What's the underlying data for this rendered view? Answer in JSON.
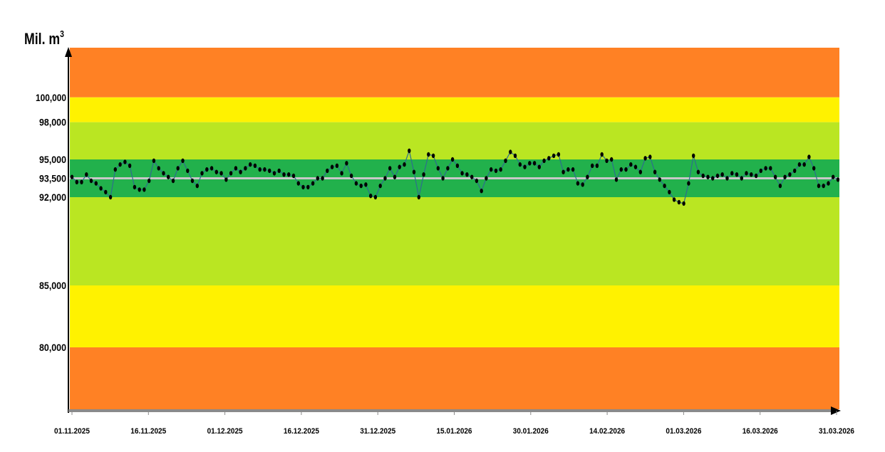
{
  "chart_data": {
    "type": "line",
    "ylabel": "Mil. m",
    "ylabel_sup": "3",
    "ylim": [
      75000,
      104000
    ],
    "y_ticks": [
      {
        "value": 100000,
        "label": "100,000"
      },
      {
        "value": 98000,
        "label": "98,000"
      },
      {
        "value": 95000,
        "label": "95,000"
      },
      {
        "value": 93500,
        "label": "93,500"
      },
      {
        "value": 92000,
        "label": "92,000"
      },
      {
        "value": 85000,
        "label": "85,000"
      },
      {
        "value": 80000,
        "label": "80,000"
      }
    ],
    "x_ticks": [
      "01.11.2025",
      "16.11.2025",
      "01.12.2025",
      "16.12.2025",
      "31.12.2025",
      "15.01.2026",
      "30.01.2026",
      "14.02.2026",
      "01.03.2026",
      "16.03.2026",
      "31.03.2026"
    ],
    "x_start": "01.11.2025",
    "x_end": "31.03.2026",
    "bands": [
      {
        "from": 100000,
        "to": 104000,
        "color": "#FF8124"
      },
      {
        "from": 98000,
        "to": 100000,
        "color": "#FFF200"
      },
      {
        "from": 95000,
        "to": 98000,
        "color": "#BAE622"
      },
      {
        "from": 92000,
        "to": 95000,
        "color": "#22B14C"
      },
      {
        "from": 85000,
        "to": 92000,
        "color": "#BAE622"
      },
      {
        "from": 80000,
        "to": 85000,
        "color": "#FFF200"
      },
      {
        "from": 75000,
        "to": 80000,
        "color": "#FF8124"
      }
    ],
    "reference_line": {
      "value": 93500,
      "color": "#C8C8C8"
    },
    "line_color": "#2E6E8E",
    "marker_color": "#000000",
    "grid": false,
    "legend": "none",
    "series": [
      {
        "values": [
          93600,
          93200,
          93200,
          93800,
          93300,
          93100,
          92700,
          92400,
          92000,
          94200,
          94600,
          94800,
          94500,
          92800,
          92600,
          92600,
          93300,
          94900,
          94300,
          93900,
          93600,
          93300,
          94300,
          94900,
          94100,
          93300,
          92900,
          93900,
          94200,
          94300,
          94000,
          93900,
          93400,
          93900,
          94300,
          94000,
          94300,
          94600,
          94500,
          94200,
          94200,
          94100,
          93900,
          94100,
          93800,
          93800,
          93700,
          93100,
          92800,
          92800,
          93100,
          93500,
          93500,
          94100,
          94400,
          94500,
          93900,
          94700,
          93700,
          93100,
          92900,
          93000,
          92100,
          92000,
          92900,
          93500,
          94300,
          93600,
          94400,
          94600,
          95700,
          94000,
          92000,
          93800,
          95400,
          95300,
          94300,
          93500,
          94300,
          95000,
          94500,
          93900,
          93800,
          93600,
          93300,
          92500,
          93500,
          94200,
          94100,
          94200,
          94900,
          95600,
          95300,
          94600,
          94400,
          94700,
          94700,
          94400,
          94900,
          95100,
          95300,
          95400,
          94000,
          94200,
          94200,
          93100,
          93000,
          93600,
          94500,
          94500,
          95400,
          94900,
          95000,
          93400,
          94200,
          94200,
          94600,
          94400,
          94000,
          95100,
          95200,
          94000,
          93400,
          92900,
          92400,
          91800,
          91600,
          91500,
          93100,
          95300,
          94000,
          93700,
          93600,
          93500,
          93700,
          93800,
          93500,
          93900,
          93800,
          93500,
          93900,
          93800,
          93700,
          94100,
          94300,
          94300,
          93600,
          92900,
          93600,
          93800,
          94100,
          94600,
          94600,
          95200,
          94300,
          92900,
          92900,
          93100,
          93600,
          93400
        ],
        "color": "#2E6E8E"
      }
    ]
  }
}
